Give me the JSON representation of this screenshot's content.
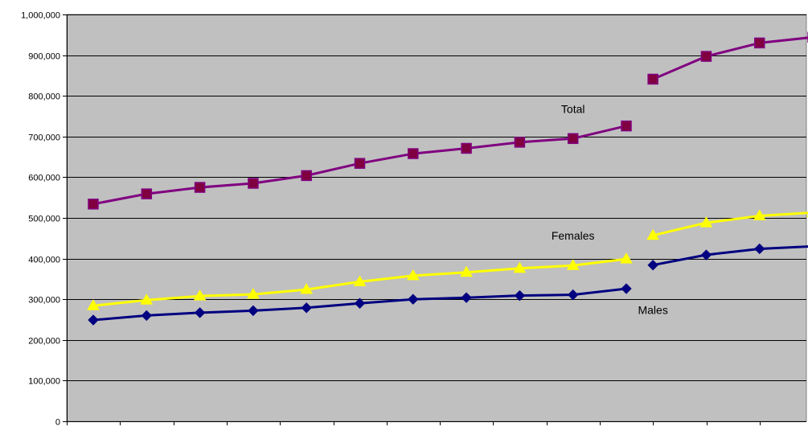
{
  "chart_data": {
    "type": "line",
    "title": "",
    "xlabel": "",
    "ylabel": "",
    "ylim": [
      0,
      1000000
    ],
    "yticks": [
      0,
      100000,
      200000,
      300000,
      400000,
      500000,
      600000,
      700000,
      800000,
      900000,
      1000000
    ],
    "ytick_labels": [
      "0",
      "100,000",
      "200,000",
      "300,000",
      "400,000",
      "500,000",
      "600,000",
      "700,000",
      "800,000",
      "900,000",
      "1,000,000"
    ],
    "x_count": 14,
    "grid": true,
    "legend": "none",
    "plot_background": "#C0C0C0",
    "series": [
      {
        "name": "Total",
        "color": "#800080",
        "marker": "square",
        "marker_fill": "#800040",
        "segments": [
          {
            "x": [
              0,
              1,
              2,
              3,
              4,
              5,
              6,
              7,
              8,
              9,
              10
            ],
            "y": [
              534000,
              559000,
              575000,
              585000,
              604000,
              634000,
              658000,
              671000,
              686000,
              695000,
              726000
            ]
          },
          {
            "x": [
              10.5,
              11.5,
              12.5,
              13.5
            ],
            "y": [
              841000,
              897000,
              930000,
              944000
            ]
          }
        ]
      },
      {
        "name": "Females",
        "color": "#FFFF00",
        "marker": "triangle",
        "marker_fill": "#FFFF00",
        "segments": [
          {
            "x": [
              0,
              1,
              2,
              3,
              4,
              5,
              6,
              7,
              8,
              9,
              10
            ],
            "y": [
              284000,
              298000,
              308000,
              312000,
              324000,
              343000,
              358000,
              366000,
              376000,
              383000,
              399000
            ]
          },
          {
            "x": [
              10.5,
              11.5,
              12.5,
              13.5
            ],
            "y": [
              457000,
              488000,
              505000,
              513000
            ]
          }
        ]
      },
      {
        "name": "Males",
        "color": "#000080",
        "marker": "diamond",
        "marker_fill": "#000080",
        "segments": [
          {
            "x": [
              0,
              1,
              2,
              3,
              4,
              5,
              6,
              7,
              8,
              9,
              10
            ],
            "y": [
              249000,
              260000,
              267000,
              272000,
              279000,
              290000,
              300000,
              304000,
              309000,
              311000,
              326000
            ]
          },
          {
            "x": [
              10.5,
              11.5,
              12.5,
              13.5
            ],
            "y": [
              384000,
              409000,
              424000,
              430000
            ]
          }
        ]
      }
    ],
    "annotations": [
      {
        "text": "Total",
        "series": "Total",
        "x": 9,
        "y": 758000
      },
      {
        "text": "Females",
        "series": "Females",
        "x": 9,
        "y": 447000
      },
      {
        "text": "Males",
        "series": "Males",
        "x": 10.5,
        "y": 264000
      }
    ]
  }
}
